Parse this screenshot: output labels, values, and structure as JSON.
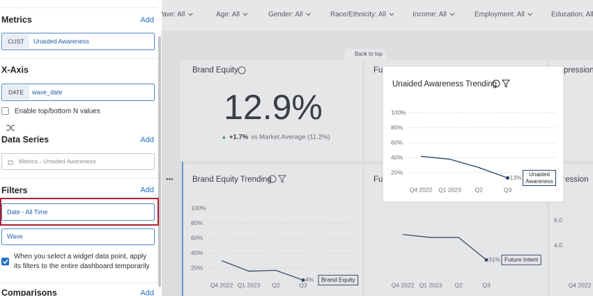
{
  "filter_bar": [
    "Wave: All",
    "Age: All",
    "Gender: All",
    "Race/Ethnicity: All",
    "Income: All",
    "Employment: All",
    "Education: All"
  ],
  "back_to_top": "Back to top",
  "widgets": {
    "brand_equity": {
      "title": "Brand Equity",
      "value": "12.9%",
      "delta": "+1.7%",
      "comparison": "vs Market Average (11.2%)"
    },
    "clipped_titles": [
      "Fu",
      "pression"
    ]
  },
  "charts": [
    {
      "title": "Unaided Awareness Trending",
      "ylim": [
        0,
        100
      ],
      "yticks": [
        {
          "value": 100,
          "label": "100%"
        },
        {
          "value": 80,
          "label": "80%"
        },
        {
          "value": 60,
          "label": "60%"
        },
        {
          "value": 40,
          "label": "40%"
        },
        {
          "value": 20,
          "label": "20%"
        }
      ],
      "categories": [
        "Q4 2022",
        "Q1 2023",
        "Q2",
        "Q3"
      ],
      "values": [
        42,
        38,
        27,
        13
      ],
      "value_labels": [
        null,
        null,
        null,
        "13%"
      ],
      "legend": "Unaided Awareness"
    },
    {
      "title": "Brand Equity Trending",
      "ylim": [
        0,
        100
      ],
      "yticks": [
        {
          "value": 100,
          "label": "100%"
        },
        {
          "value": 80,
          "label": "80%"
        },
        {
          "value": 60,
          "label": "60%"
        },
        {
          "value": 40,
          "label": "40%"
        },
        {
          "value": 20,
          "label": "20%"
        }
      ],
      "categories": [
        "Q4 2022",
        "Q1 2023",
        "Q2",
        "Q3"
      ],
      "values": [
        30,
        16,
        17,
        4
      ],
      "value_labels": [
        null,
        null,
        null,
        "4%"
      ],
      "legend": "Brand Equity"
    },
    {
      "title": "Fu",
      "ylim": [
        0,
        100
      ],
      "categories": [
        "Q4 2022",
        "Q1 2023",
        "Q2",
        "Q3"
      ],
      "values": [
        65,
        61,
        61,
        31
      ],
      "value_labels": [
        null,
        null,
        null,
        "31%"
      ],
      "legend": "Future Intent"
    },
    {
      "title": "pression",
      "ylim": [
        1,
        7
      ],
      "yticks": [
        {
          "value": 6,
          "label": "6.0"
        },
        {
          "value": 4,
          "label": "4.0"
        }
      ],
      "categories": [
        "Q4 2022"
      ]
    }
  ],
  "sidebar": {
    "metrics": {
      "title": "Metrics",
      "action": "Add",
      "chip_tag": "CUST",
      "chip_label": "Unaided Awareness"
    },
    "x_axis": {
      "title": "X-Axis",
      "chip_tag": "DATE",
      "chip_label": "wave_date",
      "checkbox": "Enable top/bottom N values"
    },
    "data_series": {
      "title": "Data Series",
      "action": "Add",
      "placeholder": "Metrics - Unaided Awareness"
    },
    "filters": {
      "title": "Filters",
      "action": "Add",
      "items": [
        "Date - All Time",
        "Wave"
      ],
      "checkbox": "When you select a widget data point, apply its filters to the entire dashboard temporarily"
    },
    "comparisons": {
      "title": "Comparisons",
      "action": "Add"
    }
  }
}
